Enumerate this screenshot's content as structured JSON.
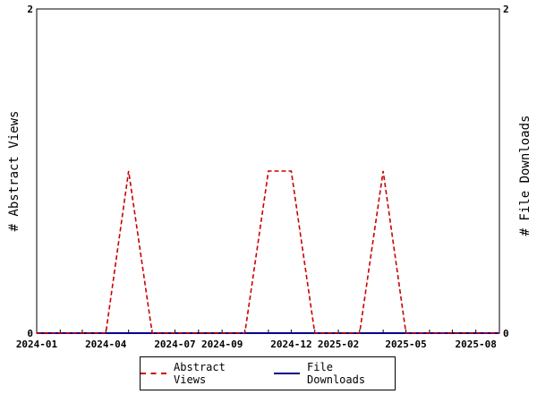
{
  "chart_data": {
    "type": "line",
    "x_ticks": [
      "2024-01",
      "2024-04",
      "2024-07",
      "2024-09",
      "2024-12",
      "2025-02",
      "2025-05",
      "2025-08"
    ],
    "xlim": [
      "2024-01-01",
      "2025-09-01"
    ],
    "ylim": [
      0,
      2
    ],
    "y_left_ticks": [
      "0",
      "2"
    ],
    "y_right_ticks": [
      "0",
      "2"
    ],
    "ylabel_left": "# Abstract Views",
    "ylabel_right": "# File Downloads",
    "legend_position": "bottom",
    "series": [
      {
        "name": "Abstract Views",
        "color": "#cc0000",
        "style": "dashed",
        "x": [
          "2024-01-01",
          "2024-02-01",
          "2024-03-01",
          "2024-04-01",
          "2024-05-01",
          "2024-06-01",
          "2024-07-01",
          "2024-08-01",
          "2024-09-01",
          "2024-10-01",
          "2024-11-01",
          "2024-12-01",
          "2025-01-01",
          "2025-02-01",
          "2025-03-01",
          "2025-04-01",
          "2025-05-01",
          "2025-06-01",
          "2025-07-01",
          "2025-08-01",
          "2025-09-01"
        ],
        "y": [
          0,
          0,
          0,
          0,
          1,
          0,
          0,
          0,
          0,
          0,
          1,
          1,
          0,
          0,
          0,
          1,
          0,
          0,
          0,
          0,
          0
        ]
      },
      {
        "name": "File Downloads",
        "color": "#00008b",
        "style": "solid",
        "x": [
          "2024-01-01",
          "2025-09-01"
        ],
        "y": [
          0,
          0
        ]
      }
    ]
  }
}
